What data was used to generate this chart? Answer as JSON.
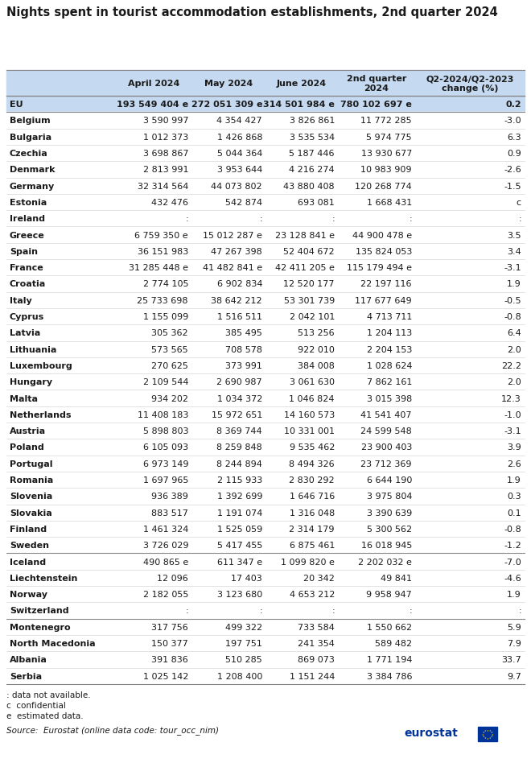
{
  "title": "Nights spent in tourist accommodation establishments, 2nd quarter 2024",
  "col_headers": [
    "",
    "April 2024",
    "May 2024",
    "June 2024",
    "2nd quarter\n2024",
    "Q2-2024/Q2-2023\nchange (%)"
  ],
  "rows": [
    [
      "EU",
      "193 549 404 e",
      "272 051 309 e",
      "314 501 984 e",
      "780 102 697 e",
      "0.2"
    ],
    [
      "Belgium",
      "3 590 997",
      "4 354 427",
      "3 826 861",
      "11 772 285",
      "-3.0"
    ],
    [
      "Bulgaria",
      "1 012 373",
      "1 426 868",
      "3 535 534",
      "5 974 775",
      "6.3"
    ],
    [
      "Czechia",
      "3 698 867",
      "5 044 364",
      "5 187 446",
      "13 930 677",
      "0.9"
    ],
    [
      "Denmark",
      "2 813 991",
      "3 953 644",
      "4 216 274",
      "10 983 909",
      "-2.6"
    ],
    [
      "Germany",
      "32 314 564",
      "44 073 802",
      "43 880 408",
      "120 268 774",
      "-1.5"
    ],
    [
      "Estonia",
      "432 476",
      "542 874",
      "693 081",
      "1 668 431",
      "c"
    ],
    [
      "Ireland",
      ":",
      ":",
      ":",
      ":",
      ":"
    ],
    [
      "Greece",
      "6 759 350 e",
      "15 012 287 e",
      "23 128 841 e",
      "44 900 478 e",
      "3.5"
    ],
    [
      "Spain",
      "36 151 983",
      "47 267 398",
      "52 404 672",
      "135 824 053",
      "3.4"
    ],
    [
      "France",
      "31 285 448 e",
      "41 482 841 e",
      "42 411 205 e",
      "115 179 494 e",
      "-3.1"
    ],
    [
      "Croatia",
      "2 774 105",
      "6 902 834",
      "12 520 177",
      "22 197 116",
      "1.9"
    ],
    [
      "Italy",
      "25 733 698",
      "38 642 212",
      "53 301 739",
      "117 677 649",
      "-0.5"
    ],
    [
      "Cyprus",
      "1 155 099",
      "1 516 511",
      "2 042 101",
      "4 713 711",
      "-0.8"
    ],
    [
      "Latvia",
      "305 362",
      "385 495",
      "513 256",
      "1 204 113",
      "6.4"
    ],
    [
      "Lithuania",
      "573 565",
      "708 578",
      "922 010",
      "2 204 153",
      "2.0"
    ],
    [
      "Luxembourg",
      "270 625",
      "373 991",
      "384 008",
      "1 028 624",
      "22.2"
    ],
    [
      "Hungary",
      "2 109 544",
      "2 690 987",
      "3 061 630",
      "7 862 161",
      "2.0"
    ],
    [
      "Malta",
      "934 202",
      "1 034 372",
      "1 046 824",
      "3 015 398",
      "12.3"
    ],
    [
      "Netherlands",
      "11 408 183",
      "15 972 651",
      "14 160 573",
      "41 541 407",
      "-1.0"
    ],
    [
      "Austria",
      "5 898 803",
      "8 369 744",
      "10 331 001",
      "24 599 548",
      "-3.1"
    ],
    [
      "Poland",
      "6 105 093",
      "8 259 848",
      "9 535 462",
      "23 900 403",
      "3.9"
    ],
    [
      "Portugal",
      "6 973 149",
      "8 244 894",
      "8 494 326",
      "23 712 369",
      "2.6"
    ],
    [
      "Romania",
      "1 697 965",
      "2 115 933",
      "2 830 292",
      "6 644 190",
      "1.9"
    ],
    [
      "Slovenia",
      "936 389",
      "1 392 699",
      "1 646 716",
      "3 975 804",
      "0.3"
    ],
    [
      "Slovakia",
      "883 517",
      "1 191 074",
      "1 316 048",
      "3 390 639",
      "0.1"
    ],
    [
      "Finland",
      "1 461 324",
      "1 525 059",
      "2 314 179",
      "5 300 562",
      "-0.8"
    ],
    [
      "Sweden",
      "3 726 029",
      "5 417 455",
      "6 875 461",
      "16 018 945",
      "-1.2"
    ],
    [
      "Iceland",
      "490 865 e",
      "611 347 e",
      "1 099 820 e",
      "2 202 032 e",
      "-7.0"
    ],
    [
      "Liechtenstein",
      "12 096",
      "17 403",
      "20 342",
      "49 841",
      "-4.6"
    ],
    [
      "Norway",
      "2 182 055",
      "3 123 680",
      "4 653 212",
      "9 958 947",
      "1.9"
    ],
    [
      "Switzerland",
      ":",
      ":",
      ":",
      ":",
      ":"
    ],
    [
      "Montenegro",
      "317 756",
      "499 322",
      "733 584",
      "1 550 662",
      "5.9"
    ],
    [
      "North Macedonia",
      "150 377",
      "197 751",
      "241 354",
      "589 482",
      "7.9"
    ],
    [
      "Albania",
      "391 836",
      "510 285",
      "869 073",
      "1 771 194",
      "33.7"
    ],
    [
      "Serbia",
      "1 025 142",
      "1 208 400",
      "1 151 244",
      "3 384 786",
      "9.7"
    ]
  ],
  "footnote_lines": [
    ": data not available.",
    "c  confidential",
    "e  estimated data."
  ],
  "source": "Source:  Eurostat (online data code: tour_occ_nim)",
  "header_bg": "#c5d9f1",
  "eu_row_bg": "#c5d9f1",
  "separator_rows": [
    "Iceland",
    "Montenegro"
  ],
  "title_fontsize": 10.5,
  "header_fontsize": 8.0,
  "cell_fontsize": 8.0,
  "footnote_fontsize": 7.5,
  "source_fontsize": 7.5
}
